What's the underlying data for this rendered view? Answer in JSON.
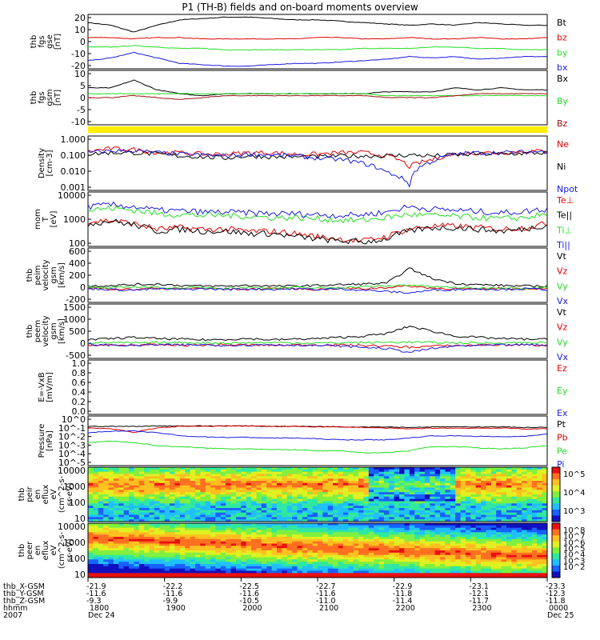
{
  "title": "P1  (TH-B) fields and on-board moments overview",
  "colors": {
    "black": "#000000",
    "red": "#e00000",
    "green": "#22dd22",
    "blue": "#1a1ae0",
    "darkred": "#a01010",
    "yellow": "#ffee00"
  },
  "chart_data": [
    {
      "type": "line",
      "panel": "fgs_fields",
      "ylabel": [
        "thb",
        "fgs",
        "gse",
        "[nT]"
      ],
      "yticks": [
        "20",
        "10",
        "0",
        "-10",
        "-20"
      ],
      "ylim": [
        -20,
        20
      ],
      "legend": [
        "Bt",
        "bz",
        "by",
        "bx"
      ],
      "series": [
        {
          "name": "Bt",
          "color": "#000000",
          "values": [
            14,
            12,
            7,
            12,
            16,
            17,
            18,
            18,
            17,
            16,
            16,
            15,
            14,
            13,
            12,
            13,
            12,
            14,
            13,
            12,
            12
          ]
        },
        {
          "name": "bz",
          "color": "#e00000",
          "values": [
            3,
            3,
            2,
            3,
            3,
            2,
            2,
            2,
            2,
            2,
            3,
            3,
            2,
            2,
            3,
            2,
            2,
            3,
            2,
            2,
            3
          ]
        },
        {
          "name": "by",
          "color": "#22dd22",
          "values": [
            -4,
            -4,
            -3,
            -4,
            -5,
            -5,
            -6,
            -6,
            -6,
            -6,
            -6,
            -6,
            -5,
            -5,
            -5,
            -4,
            -4,
            -5,
            -5,
            -6,
            -6
          ]
        },
        {
          "name": "bx",
          "color": "#1a1ae0",
          "values": [
            -14,
            -12,
            -8,
            -12,
            -16,
            -17,
            -18,
            -18,
            -17,
            -16,
            -16,
            -15,
            -14,
            -13,
            -11,
            -12,
            -11,
            -13,
            -12,
            -11,
            -11
          ]
        }
      ]
    },
    {
      "type": "line",
      "panel": "fgs_gsm",
      "ylabel": [
        "thb",
        "fgs",
        "gsm",
        "[nT]"
      ],
      "yticks": [
        "10",
        "5",
        "0",
        "-5",
        "-10"
      ],
      "ylim": [
        -14,
        14
      ],
      "legend": [
        "Bx",
        "By",
        "Bz"
      ],
      "series": [
        {
          "name": "Bx",
          "color": "#000000",
          "values": [
            5,
            5,
            9,
            4,
            2,
            1,
            2,
            2,
            2,
            2,
            2,
            2,
            2,
            3,
            3,
            3,
            5,
            4,
            5,
            4,
            4
          ]
        },
        {
          "name": "By",
          "color": "#22dd22",
          "values": [
            2,
            2,
            2,
            2,
            2,
            2,
            2,
            2,
            2,
            2,
            2,
            2,
            2,
            1,
            1,
            1,
            1,
            1,
            1,
            1,
            1
          ]
        },
        {
          "name": "Bz",
          "color": "#a01010",
          "values": [
            0,
            0,
            1,
            0,
            -1,
            0,
            1,
            1,
            1,
            1,
            1,
            1,
            1,
            0,
            0,
            0,
            1,
            2,
            2,
            2,
            2
          ]
        }
      ]
    },
    {
      "type": "line",
      "panel": "density",
      "scale": "log",
      "ylabel": [
        "Density",
        "[cm-3]"
      ],
      "yticks": [
        "1.000",
        "0.100",
        "0.010",
        "0.001"
      ],
      "ylim": [
        0.001,
        1
      ],
      "legend": [
        "Ne",
        "Ni",
        "Npot"
      ],
      "series": [
        {
          "name": "Ne",
          "color": "#e00000",
          "values": [
            0.14,
            0.2,
            0.18,
            0.12,
            0.12,
            0.1,
            0.1,
            0.12,
            0.12,
            0.1,
            0.1,
            0.12,
            0.12,
            0.08,
            0.02,
            0.05,
            0.1,
            0.12,
            0.12,
            0.14,
            0.15
          ]
        },
        {
          "name": "Ni",
          "color": "#000000",
          "values": [
            0.1,
            0.12,
            0.12,
            0.1,
            0.08,
            0.07,
            0.06,
            0.08,
            0.07,
            0.07,
            0.07,
            0.08,
            0.08,
            0.08,
            0.09,
            0.08,
            0.09,
            0.1,
            0.1,
            0.11,
            0.12
          ]
        },
        {
          "name": "Npot",
          "color": "#1a1ae0",
          "values": [
            0.12,
            0.15,
            0.15,
            0.12,
            0.1,
            0.09,
            0.08,
            0.1,
            0.09,
            0.08,
            0.06,
            0.05,
            0.03,
            0.01,
            0.002,
            0.04,
            0.1,
            0.12,
            0.12,
            0.13,
            0.14
          ]
        }
      ]
    },
    {
      "type": "line",
      "panel": "temperature",
      "scale": "log",
      "ylabel": [
        "mom",
        "T",
        "[eV]"
      ],
      "yticks": [
        "10000",
        "1000",
        "100"
      ],
      "ylim": [
        60,
        10000
      ],
      "legend": [
        "Te⊥",
        "Te||",
        "Ti⊥",
        "Ti||"
      ],
      "series": [
        {
          "name": "Te⊥",
          "color": "#e00000",
          "values": [
            600,
            700,
            500,
            300,
            350,
            300,
            300,
            250,
            250,
            200,
            150,
            120,
            100,
            150,
            300,
            400,
            400,
            350,
            300,
            350,
            500
          ]
        },
        {
          "name": "Te||",
          "color": "#000000",
          "values": [
            500,
            650,
            450,
            250,
            300,
            250,
            250,
            200,
            200,
            150,
            120,
            100,
            90,
            120,
            250,
            350,
            350,
            300,
            250,
            300,
            450
          ]
        },
        {
          "name": "Ti⊥",
          "color": "#22dd22",
          "values": [
            1800,
            2200,
            1800,
            1300,
            1200,
            1100,
            1100,
            1000,
            900,
            900,
            800,
            700,
            700,
            900,
            1200,
            1100,
            1000,
            900,
            800,
            900,
            1200
          ]
        },
        {
          "name": "Ti||",
          "color": "#1a1ae0",
          "values": [
            2500,
            3000,
            2500,
            1800,
            1700,
            1500,
            1500,
            1400,
            1300,
            1300,
            1200,
            1100,
            1200,
            1500,
            2500,
            2000,
            1800,
            1600,
            1400,
            1600,
            2000
          ]
        }
      ]
    },
    {
      "type": "line",
      "panel": "ion_velocity",
      "ylabel": [
        "thb",
        "peim",
        "velocity",
        "gsm",
        "[km/s]"
      ],
      "yticks": [
        "600",
        "400",
        "200",
        "0",
        "-200"
      ],
      "ylim": [
        -200,
        600
      ],
      "legend": [
        "Vt",
        "Vz",
        "Vy",
        "Vx"
      ],
      "series": [
        {
          "name": "Vt",
          "color": "#000000",
          "values": [
            40,
            50,
            60,
            70,
            50,
            40,
            40,
            50,
            40,
            40,
            50,
            60,
            70,
            80,
            300,
            150,
            80,
            60,
            50,
            40,
            40
          ]
        },
        {
          "name": "Vz",
          "color": "#e00000",
          "values": [
            10,
            0,
            -10,
            10,
            0,
            10,
            0,
            -10,
            10,
            0,
            -10,
            10,
            0,
            20,
            40,
            10,
            0,
            -10,
            10,
            0,
            10
          ]
        },
        {
          "name": "Vy",
          "color": "#22dd22",
          "values": [
            20,
            10,
            30,
            20,
            10,
            20,
            10,
            20,
            10,
            20,
            10,
            20,
            30,
            40,
            60,
            30,
            20,
            10,
            20,
            10,
            20
          ]
        },
        {
          "name": "Vx",
          "color": "#1a1ae0",
          "values": [
            0,
            -10,
            -20,
            0,
            -10,
            0,
            -10,
            0,
            -10,
            0,
            -10,
            0,
            -20,
            -40,
            -60,
            -20,
            -10,
            0,
            -10,
            0,
            -10
          ]
        }
      ]
    },
    {
      "type": "line",
      "panel": "electron_velocity",
      "ylabel": [
        "thb",
        "peem",
        "velocity",
        "gsm",
        "[km/s]"
      ],
      "yticks": [
        "1500",
        "1000",
        "500",
        "0",
        "-500"
      ],
      "ylim": [
        -600,
        1600
      ],
      "legend": [
        "Vt",
        "Vz",
        "Vy",
        "Vx"
      ],
      "series": [
        {
          "name": "Vt",
          "color": "#000000",
          "values": [
            150,
            200,
            250,
            200,
            180,
            150,
            170,
            200,
            150,
            180,
            200,
            250,
            300,
            400,
            700,
            500,
            300,
            250,
            200,
            180,
            170
          ]
        },
        {
          "name": "Vz",
          "color": "#e00000",
          "values": [
            -50,
            -80,
            -60,
            -50,
            -70,
            -60,
            -50,
            -60,
            -70,
            -60,
            -50,
            -60,
            -80,
            -100,
            -150,
            -100,
            -80,
            -60,
            -50,
            -60,
            -70
          ]
        },
        {
          "name": "Vy",
          "color": "#22dd22",
          "values": [
            30,
            40,
            20,
            30,
            40,
            30,
            20,
            30,
            40,
            30,
            20,
            30,
            40,
            50,
            60,
            40,
            30,
            20,
            30,
            40,
            30
          ]
        },
        {
          "name": "Vx",
          "color": "#1a1ae0",
          "values": [
            -40,
            -60,
            -80,
            -50,
            -60,
            -50,
            -70,
            -60,
            -50,
            -60,
            -80,
            -100,
            -150,
            -200,
            -350,
            -200,
            -100,
            -80,
            -60,
            -50,
            -60
          ]
        }
      ]
    },
    {
      "type": "line",
      "panel": "efield",
      "ylabel": [
        "E=-VxB",
        "[mV/m]"
      ],
      "yticks": [
        "1.0",
        "0.8",
        "0.6",
        "0.4",
        "0.2",
        "0.0"
      ],
      "ylim": [
        0,
        1
      ],
      "legend": [
        "Ez",
        "Ey",
        "Ex"
      ],
      "series": []
    },
    {
      "type": "line",
      "panel": "pressure",
      "scale": "log",
      "ylabel": [
        "Pressure",
        "[nPa]"
      ],
      "yticks": [
        "10^0",
        "10^-1",
        "10^-2",
        "10^-3",
        "10^-4",
        "10^-5"
      ],
      "ylim": [
        1e-05,
        1
      ],
      "legend": [
        "Pt",
        "Pb",
        "Pe",
        "Pi"
      ],
      "series": [
        {
          "name": "Pt",
          "color": "#000000",
          "values": [
            0.09,
            0.09,
            0.09,
            0.1,
            0.1,
            0.1,
            0.1,
            0.1,
            0.09,
            0.09,
            0.09,
            0.08,
            0.08,
            0.08,
            0.07,
            0.08,
            0.08,
            0.08,
            0.08,
            0.07,
            0.07
          ]
        },
        {
          "name": "Pb",
          "color": "#e00000",
          "values": [
            0.06,
            0.05,
            0.02,
            0.06,
            0.09,
            0.09,
            0.1,
            0.1,
            0.09,
            0.09,
            0.08,
            0.08,
            0.07,
            0.06,
            0.05,
            0.06,
            0.06,
            0.06,
            0.06,
            0.05,
            0.05
          ]
        },
        {
          "name": "Pe",
          "color": "#22dd22",
          "values": [
            0.002,
            0.003,
            0.002,
            0.001,
            0.0008,
            0.0006,
            0.0005,
            0.0005,
            0.0004,
            0.0004,
            0.0003,
            0.0003,
            0.0002,
            0.0002,
            0.0003,
            0.0008,
            0.0008,
            0.0006,
            0.0005,
            0.0006,
            0.001
          ]
        },
        {
          "name": "Pi",
          "color": "#1a1ae0",
          "values": [
            0.02,
            0.03,
            0.03,
            0.02,
            0.01,
            0.008,
            0.007,
            0.007,
            0.006,
            0.006,
            0.005,
            0.004,
            0.004,
            0.004,
            0.006,
            0.01,
            0.01,
            0.009,
            0.008,
            0.009,
            0.015
          ]
        }
      ]
    },
    {
      "type": "heatmap",
      "panel": "ion_spectrogram",
      "ylabel": [
        "thb",
        "peir",
        "en",
        "eflux",
        "eV",
        "(cm^2-s-",
        "sr-eV)"
      ],
      "yticks": [
        "10000",
        "1000",
        "100",
        "10"
      ],
      "colorbar_ticks": [
        "10^5",
        "10^4",
        "10^3"
      ]
    },
    {
      "type": "heatmap",
      "panel": "electron_spectrogram",
      "ylabel": [
        "thb",
        "peer",
        "en",
        "eflux",
        "eV",
        "(cm^2-s-",
        "sr-eV)"
      ],
      "yticks": [
        "10000",
        "1000",
        "100",
        "10"
      ],
      "colorbar_ticks": [
        "10^8",
        "10^7",
        "10^6",
        "10^5",
        "10^4",
        "10^3",
        "10^2"
      ]
    }
  ],
  "footer": {
    "row_labels": [
      "thb_X-GSM",
      "thb_Y-GSM",
      "thb_Z-GSM",
      "hhmm",
      "2007"
    ],
    "columns": [
      {
        "x": "-21.9",
        "y": "-11.6",
        "z": "-9.3",
        "hhmm": "1800",
        "date": "Dec 24"
      },
      {
        "x": "-22.2",
        "y": "-11.6",
        "z": "-9.9",
        "hhmm": "1900",
        "date": ""
      },
      {
        "x": "-22.5",
        "y": "-11.6",
        "z": "-10.5",
        "hhmm": "2000",
        "date": ""
      },
      {
        "x": "-22.7",
        "y": "-11.6",
        "z": "-11.0",
        "hhmm": "2100",
        "date": ""
      },
      {
        "x": "-22.9",
        "y": "-11.8",
        "z": "-11.4",
        "hhmm": "2200",
        "date": ""
      },
      {
        "x": "-23.1",
        "y": "-12.1",
        "z": "-11.7",
        "hhmm": "2300",
        "date": ""
      },
      {
        "x": "-23.3",
        "y": "-12.3",
        "z": "-11.8",
        "hhmm": "0000",
        "date": "Dec 25"
      }
    ]
  }
}
